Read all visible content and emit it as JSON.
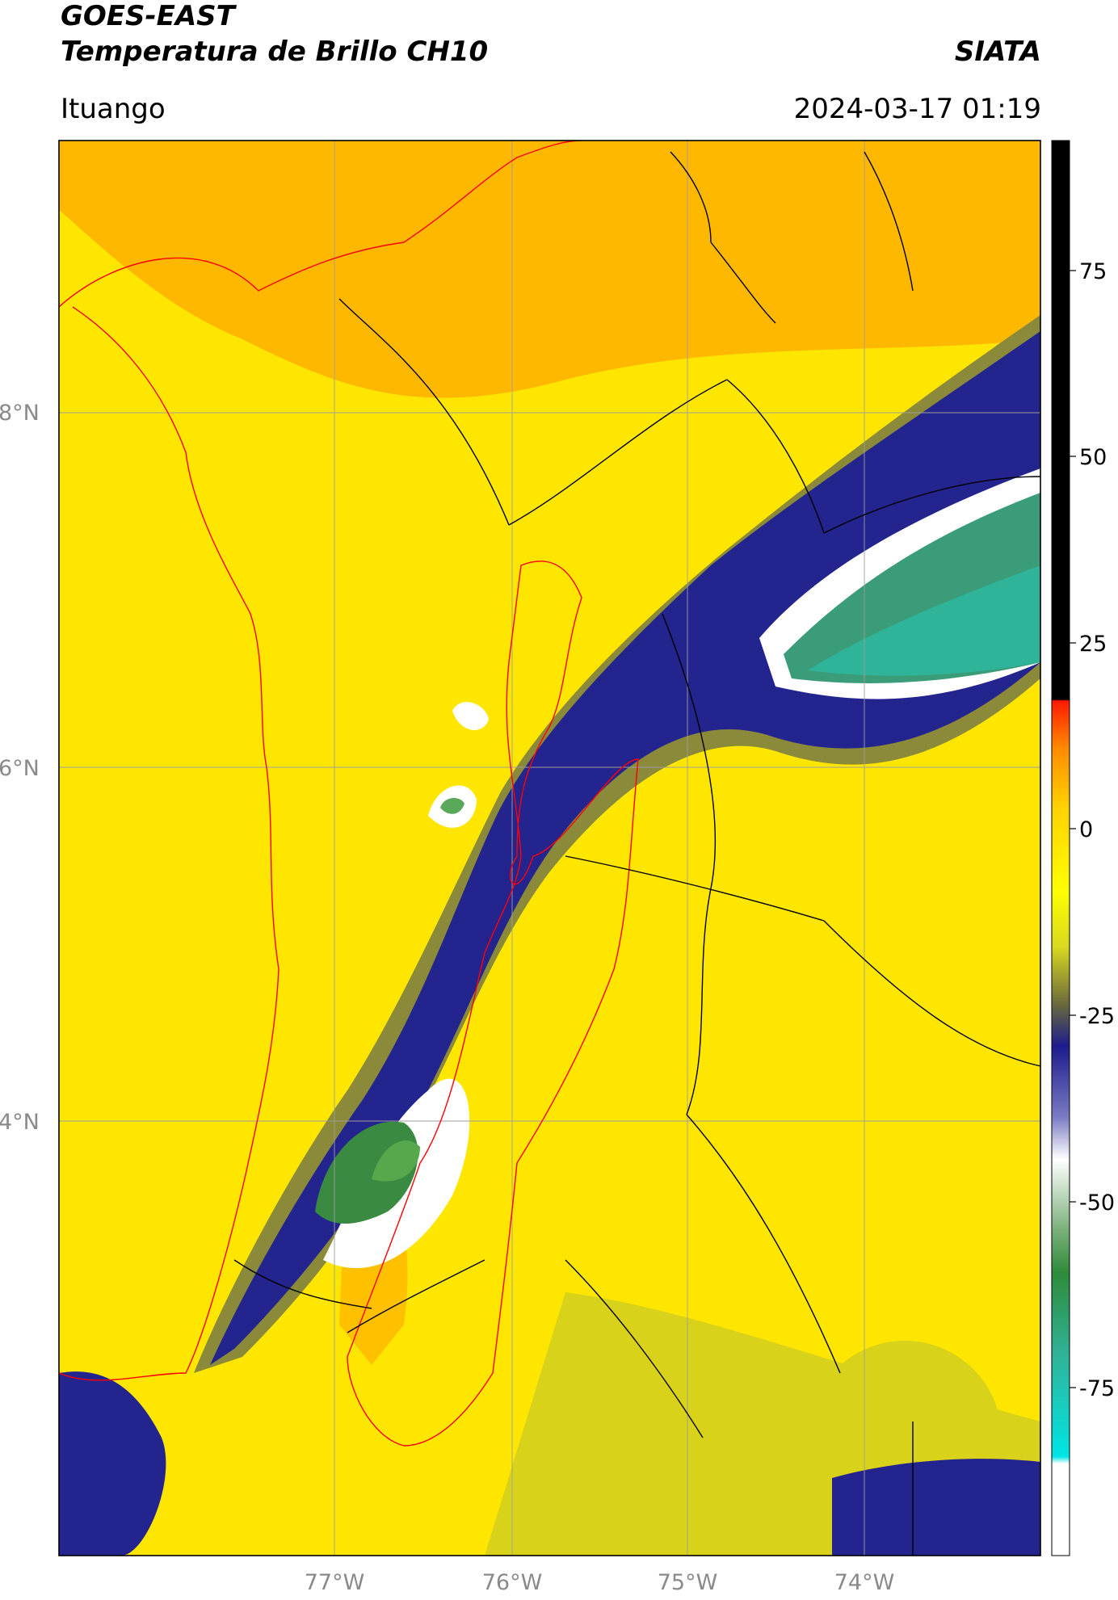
{
  "header": {
    "satellite": "GOES-EAST",
    "product": "Temperatura de Brillo CH10",
    "agency": "SIATA",
    "region": "Ituango",
    "datetime": "2024-03-17 01:19"
  },
  "map": {
    "lat_labels": [
      "8°N",
      "6°N",
      "4°N"
    ],
    "lon_labels": [
      "77°W",
      "76°W",
      "75°W",
      "74°W"
    ],
    "gridlines": true,
    "land_color": "#ffd200",
    "border_color": "#000000",
    "highlight_border_color": "#ff0000"
  },
  "colorbar": {
    "ticks": [
      "75",
      "50",
      "25",
      "0",
      "-25",
      "-50",
      "-75"
    ],
    "colors": {
      "black": "#000000",
      "red": "#ff0000",
      "orange": "#ffa500",
      "yellow": "#ffff00",
      "olive": "#8b8b3a",
      "navy": "#1c1c8c",
      "white": "#ffffff",
      "green": "#2e8b3a",
      "cyan": "#00e5e5"
    }
  }
}
